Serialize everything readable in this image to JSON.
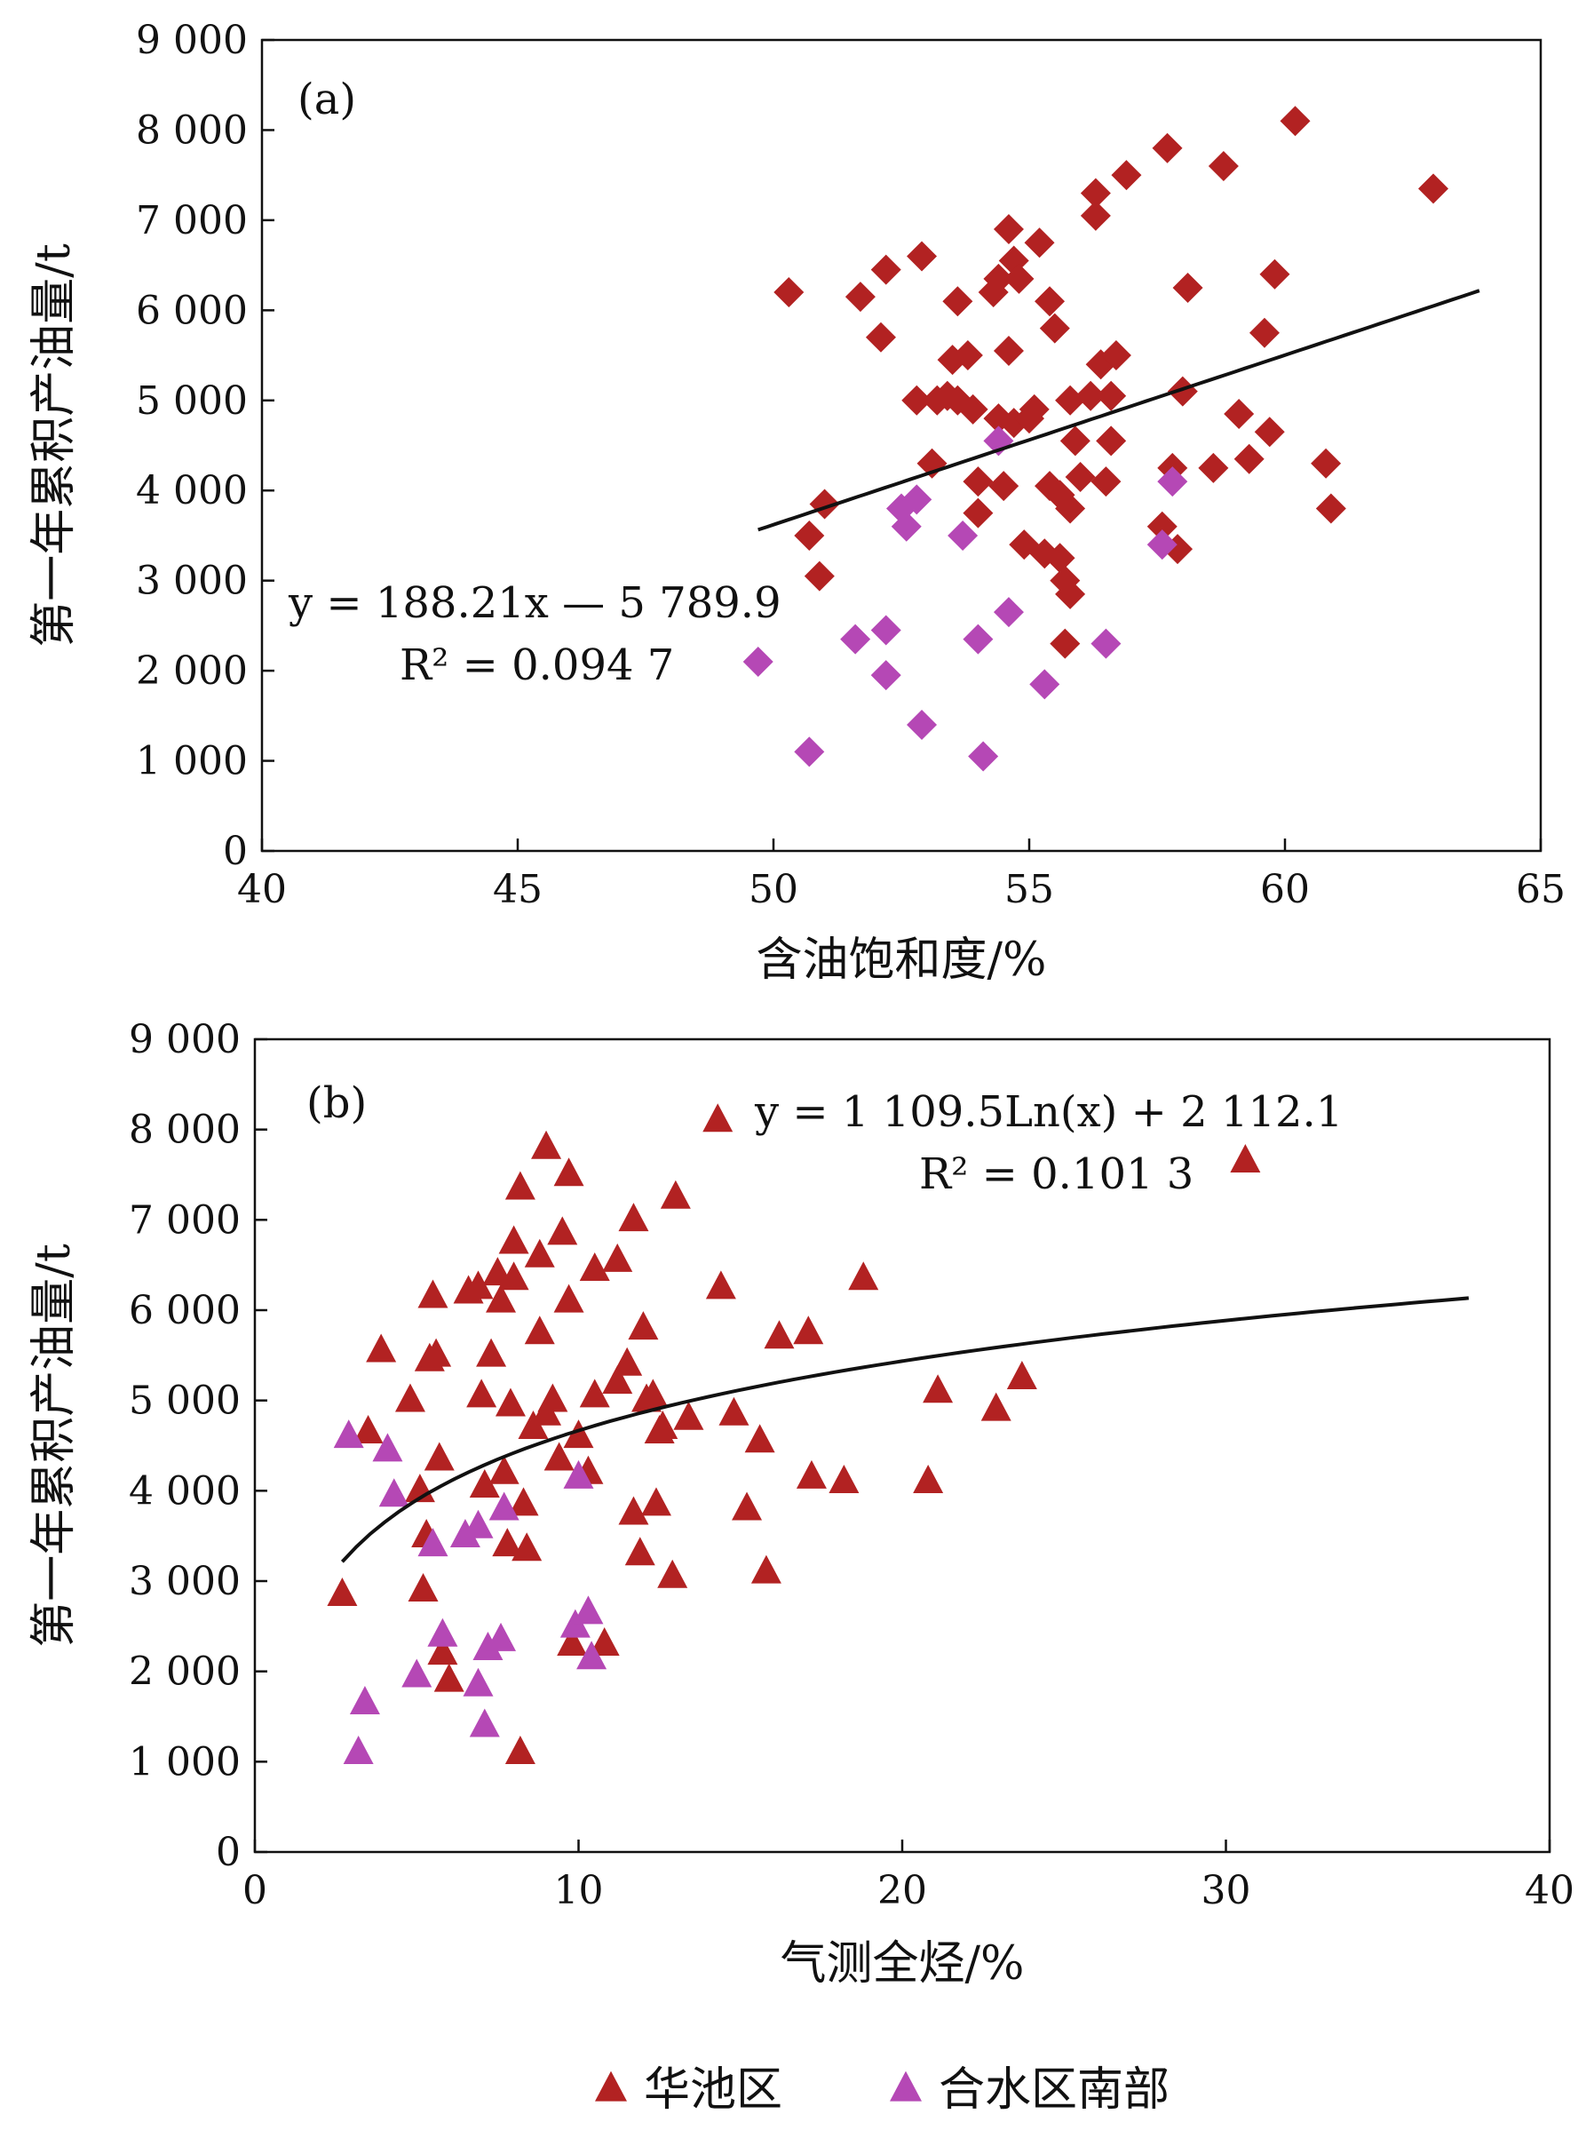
{
  "colors": {
    "huachi": "#B22222",
    "heshui_south": "#B548B5",
    "trend": "#111111",
    "frame": "#111111"
  },
  "legend": {
    "items": [
      {
        "label": "华池区",
        "marker": "triangle-up",
        "color": "#B22222"
      },
      {
        "label": "合水区南部",
        "marker": "triangle-up",
        "color": "#B548B5"
      }
    ]
  },
  "chart_data": [
    {
      "panel_label": "(a)",
      "type": "scatter",
      "xlabel": "含油饱和度/%",
      "ylabel": "第一年累积产油量/t",
      "xlim": [
        40,
        65
      ],
      "ylim": [
        0,
        9000
      ],
      "x_ticks": [
        40,
        45,
        50,
        55,
        60,
        65
      ],
      "x_tick_labels": [
        "40",
        "45",
        "50",
        "55",
        "60",
        "65"
      ],
      "y_ticks": [
        0,
        1000,
        2000,
        3000,
        4000,
        5000,
        6000,
        7000,
        8000,
        9000
      ],
      "y_tick_labels": [
        "0",
        "1 000",
        "2 000",
        "3 000",
        "4 000",
        "5 000",
        "6 000",
        "7 000",
        "8 000",
        "9 000"
      ],
      "marker": "diamond",
      "equation": {
        "line1": "y = 188.21x — 5 789.9",
        "line2": "R² = 0.094 7"
      },
      "trendline": {
        "kind": "linear",
        "slope": 188.21,
        "intercept": -5789.9,
        "x_range": [
          49.7,
          63.8
        ]
      },
      "series": [
        {
          "color_key": "huachi",
          "points": [
            [
              50.3,
              6200
            ],
            [
              50.7,
              3500
            ],
            [
              50.9,
              3050
            ],
            [
              51.0,
              3850
            ],
            [
              51.7,
              6150
            ],
            [
              52.1,
              5700
            ],
            [
              52.2,
              6450
            ],
            [
              52.8,
              5000
            ],
            [
              52.9,
              6600
            ],
            [
              53.1,
              4300
            ],
            [
              53.2,
              5000
            ],
            [
              53.4,
              5050
            ],
            [
              53.5,
              5450
            ],
            [
              53.6,
              6100
            ],
            [
              53.6,
              5000
            ],
            [
              53.8,
              5500
            ],
            [
              53.9,
              4900
            ],
            [
              54.0,
              4100
            ],
            [
              54.0,
              3750
            ],
            [
              54.3,
              6200
            ],
            [
              54.4,
              6350
            ],
            [
              54.4,
              4800
            ],
            [
              54.5,
              4050
            ],
            [
              54.6,
              6900
            ],
            [
              54.6,
              5550
            ],
            [
              54.7,
              6550
            ],
            [
              54.7,
              4750
            ],
            [
              54.8,
              6350
            ],
            [
              54.9,
              3400
            ],
            [
              55.0,
              4800
            ],
            [
              55.1,
              4900
            ],
            [
              55.2,
              6750
            ],
            [
              55.3,
              3300
            ],
            [
              55.4,
              6100
            ],
            [
              55.4,
              4050
            ],
            [
              55.5,
              5800
            ],
            [
              55.6,
              3950
            ],
            [
              55.6,
              3250
            ],
            [
              55.7,
              3000
            ],
            [
              55.7,
              2300
            ],
            [
              55.8,
              5000
            ],
            [
              55.8,
              3800
            ],
            [
              55.8,
              2850
            ],
            [
              55.9,
              4550
            ],
            [
              56.0,
              4150
            ],
            [
              56.2,
              5050
            ],
            [
              56.3,
              7050
            ],
            [
              56.3,
              7300
            ],
            [
              56.4,
              5400
            ],
            [
              56.5,
              4100
            ],
            [
              56.6,
              4550
            ],
            [
              56.6,
              5050
            ],
            [
              56.7,
              5500
            ],
            [
              56.9,
              7500
            ],
            [
              57.6,
              3600
            ],
            [
              57.7,
              7800
            ],
            [
              57.8,
              4250
            ],
            [
              57.9,
              3350
            ],
            [
              58.0,
              5100
            ],
            [
              58.1,
              6250
            ],
            [
              58.6,
              4250
            ],
            [
              58.8,
              7600
            ],
            [
              59.1,
              4850
            ],
            [
              59.3,
              4350
            ],
            [
              59.6,
              5750
            ],
            [
              59.7,
              4650
            ],
            [
              59.8,
              6400
            ],
            [
              60.2,
              8100
            ],
            [
              60.8,
              4300
            ],
            [
              60.9,
              3800
            ],
            [
              62.9,
              7350
            ]
          ]
        },
        {
          "color_key": "heshui_south",
          "points": [
            [
              49.7,
              2100
            ],
            [
              50.7,
              1100
            ],
            [
              51.6,
              2350
            ],
            [
              52.2,
              2450
            ],
            [
              52.2,
              1950
            ],
            [
              52.5,
              3800
            ],
            [
              52.6,
              3600
            ],
            [
              52.8,
              3900
            ],
            [
              52.9,
              1400
            ],
            [
              53.7,
              3500
            ],
            [
              54.0,
              2350
            ],
            [
              54.1,
              1050
            ],
            [
              54.4,
              4550
            ],
            [
              54.6,
              2650
            ],
            [
              55.3,
              1850
            ],
            [
              56.5,
              2300
            ],
            [
              57.6,
              3400
            ],
            [
              57.8,
              4100
            ]
          ]
        }
      ]
    },
    {
      "panel_label": "(b)",
      "type": "scatter",
      "xlabel": "气测全烃/%",
      "ylabel": "第一年累积产油量/t",
      "xlim": [
        0,
        40
      ],
      "ylim": [
        0,
        9000
      ],
      "x_ticks": [
        0,
        10,
        20,
        30,
        40
      ],
      "x_tick_labels": [
        "0",
        "10",
        "20",
        "30",
        "40"
      ],
      "y_ticks": [
        0,
        1000,
        2000,
        3000,
        4000,
        5000,
        6000,
        7000,
        8000,
        9000
      ],
      "y_tick_labels": [
        "0",
        "1 000",
        "2 000",
        "3 000",
        "4 000",
        "5 000",
        "6 000",
        "7 000",
        "8 000",
        "9 000"
      ],
      "marker": "triangle-up",
      "equation": {
        "line1": "y = 1 109.5Ln(x) + 2 112.1",
        "line2": "R² = 0.101 3"
      },
      "trendline": {
        "kind": "log",
        "a": 1109.5,
        "b": 2112.1,
        "x_range": [
          2.7,
          37.5
        ]
      },
      "series": [
        {
          "color_key": "huachi",
          "points": [
            [
              2.7,
              2850
            ],
            [
              3.5,
              4650
            ],
            [
              3.9,
              5550
            ],
            [
              4.8,
              5000
            ],
            [
              5.1,
              4000
            ],
            [
              5.2,
              2900
            ],
            [
              5.3,
              3500
            ],
            [
              5.4,
              5450
            ],
            [
              5.5,
              6150
            ],
            [
              5.6,
              5500
            ],
            [
              5.7,
              4350
            ],
            [
              5.8,
              2200
            ],
            [
              6.0,
              1900
            ],
            [
              6.6,
              6200
            ],
            [
              6.9,
              6250
            ],
            [
              7.0,
              5050
            ],
            [
              7.1,
              4050
            ],
            [
              7.3,
              5500
            ],
            [
              7.5,
              6400
            ],
            [
              7.6,
              6100
            ],
            [
              7.7,
              4200
            ],
            [
              7.8,
              3400
            ],
            [
              7.9,
              4950
            ],
            [
              8.0,
              6750
            ],
            [
              8.0,
              6350
            ],
            [
              8.2,
              7350
            ],
            [
              8.2,
              1100
            ],
            [
              8.3,
              3850
            ],
            [
              8.4,
              3350
            ],
            [
              8.6,
              4700
            ],
            [
              8.8,
              5750
            ],
            [
              8.8,
              6600
            ],
            [
              9.0,
              7800
            ],
            [
              9.0,
              4850
            ],
            [
              9.2,
              5000
            ],
            [
              9.4,
              4350
            ],
            [
              9.5,
              6850
            ],
            [
              9.7,
              7500
            ],
            [
              9.7,
              6100
            ],
            [
              9.8,
              2300
            ],
            [
              10.0,
              4600
            ],
            [
              10.3,
              4200
            ],
            [
              10.5,
              6450
            ],
            [
              10.5,
              5050
            ],
            [
              10.8,
              2300
            ],
            [
              11.2,
              5200
            ],
            [
              11.2,
              6550
            ],
            [
              11.5,
              5400
            ],
            [
              11.7,
              7000
            ],
            [
              11.7,
              3750
            ],
            [
              11.9,
              3300
            ],
            [
              12.0,
              5800
            ],
            [
              12.1,
              5000
            ],
            [
              12.3,
              5050
            ],
            [
              12.4,
              3850
            ],
            [
              12.5,
              4650
            ],
            [
              12.6,
              4700
            ],
            [
              12.9,
              3050
            ],
            [
              13.0,
              7250
            ],
            [
              13.4,
              4800
            ],
            [
              14.3,
              8100
            ],
            [
              14.4,
              6250
            ],
            [
              14.8,
              4850
            ],
            [
              15.2,
              3800
            ],
            [
              15.6,
              4550
            ],
            [
              15.8,
              3100
            ],
            [
              16.2,
              5700
            ],
            [
              17.1,
              5750
            ],
            [
              17.2,
              4150
            ],
            [
              18.2,
              4100
            ],
            [
              18.8,
              6350
            ],
            [
              20.8,
              4100
            ],
            [
              21.1,
              5100
            ],
            [
              22.9,
              4900
            ],
            [
              23.7,
              5250
            ],
            [
              30.6,
              7650
            ]
          ]
        },
        {
          "color_key": "heshui_south",
          "points": [
            [
              2.9,
              4600
            ],
            [
              3.2,
              1100
            ],
            [
              3.4,
              1650
            ],
            [
              4.1,
              4450
            ],
            [
              4.3,
              3950
            ],
            [
              5.0,
              1950
            ],
            [
              5.5,
              3400
            ],
            [
              5.8,
              2400
            ],
            [
              6.5,
              3500
            ],
            [
              6.9,
              3600
            ],
            [
              6.9,
              1850
            ],
            [
              7.1,
              1400
            ],
            [
              7.2,
              2250
            ],
            [
              7.6,
              2350
            ],
            [
              7.7,
              3800
            ],
            [
              9.9,
              2500
            ],
            [
              10.0,
              4150
            ],
            [
              10.3,
              2650
            ],
            [
              10.4,
              2150
            ]
          ]
        }
      ]
    }
  ]
}
